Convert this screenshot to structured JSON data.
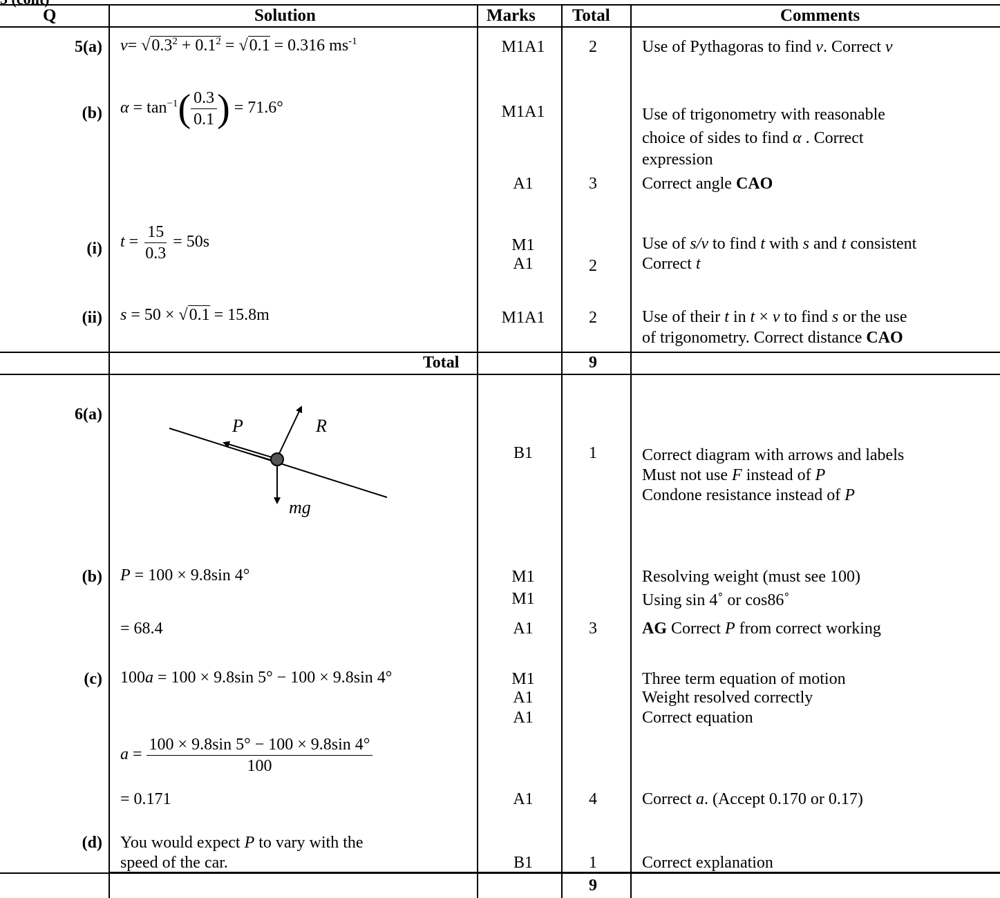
{
  "partial_header": "(cont)",
  "headers": {
    "q": "Q",
    "solution": "Solution",
    "marks": "Marks",
    "total": "Total",
    "comments": "Comments"
  },
  "q5": {
    "a": {
      "q": "5(a)",
      "sol": {
        "v_var": "v",
        "eq1": "= ",
        "rad1a": "0.3",
        "exp1": "2",
        "plus": " + 0.1",
        "exp2": "2",
        "eq2": " = ",
        "rad2": "0.1",
        "result": " = 0.316 ms",
        "unit_exp": "-1"
      },
      "marks": "M1A1",
      "total": "2",
      "comment_parts": {
        "c1": "Use of Pythagoras to find ",
        "v1": "v",
        "c2": ". Correct ",
        "v2": "v"
      }
    },
    "b": {
      "q": "(b)",
      "sol": {
        "alpha": "α",
        "eq": " = tan",
        "inv": "−1",
        "num": "0.3",
        "den": "0.1",
        "result": " = 71.6°"
      },
      "marks1": "M1A1",
      "comment1_line1": "Use of trigonometry with reasonable",
      "comment1_line2_a": "choice of sides to find ",
      "comment1_line2_alpha": "α",
      "comment1_line2_b": " .  Correct",
      "comment1_line3": "expression",
      "marks2": "A1",
      "total": "3",
      "comment2_a": "Correct angle ",
      "comment2_b": "CAO"
    },
    "i": {
      "q": "(i)",
      "sol": {
        "t": "t",
        "eq": " = ",
        "num": "15",
        "den": "0.3",
        "result": " = 50s"
      },
      "marks1": "M1",
      "marks2": "A1",
      "total": "2",
      "comment1": {
        "a": "Use of ",
        "b": "s/v",
        "c": " to find ",
        "d": "t",
        "e": " with ",
        "f": "s",
        "g": " and ",
        "h": "t",
        "i": " consistent"
      },
      "comment2": {
        "a": "Correct ",
        "b": "t"
      }
    },
    "ii": {
      "q": "(ii)",
      "sol": {
        "s": "s",
        "eq": " = 50 × ",
        "rad": "0.1",
        "result": " = 15.8m"
      },
      "marks": "M1A1",
      "total": "2",
      "comment1": {
        "a": "Use of their ",
        "b": "t",
        "c": " in  ",
        "d": "t",
        "e": " × ",
        "f": "v",
        "g": "  to find ",
        "h": "s",
        "i": " or the use"
      },
      "comment2": {
        "a": "of trigonometry.  Correct distance ",
        "b": "CAO"
      }
    },
    "total_row": {
      "label": "Total",
      "value": "9"
    }
  },
  "q6": {
    "a": {
      "q": "6(a)",
      "diagram": {
        "label_p": "P",
        "label_r": "R",
        "label_mg": "mg"
      },
      "marks": "B1",
      "total": "1",
      "comment1": "Correct diagram with arrows and labels",
      "comment2": {
        "a": "Must not use ",
        "b": "F",
        "c": " instead of ",
        "d": "P"
      },
      "comment3": {
        "a": "Condone resistance instead of ",
        "b": "P"
      }
    },
    "b": {
      "q": "(b)",
      "sol1": {
        "p": "P",
        "rest": " = 100 × 9.8sin 4°"
      },
      "sol2": "= 68.4",
      "marks1": "M1",
      "marks2": "M1",
      "marks3": "A1",
      "total": "3",
      "comment1": "Resolving weight (must see 100)",
      "comment2": "Using  sin 4˚ or  cos86˚",
      "comment3": {
        "a": "AG",
        "b": "  Correct ",
        "c": "P",
        "d": " from correct working"
      }
    },
    "c": {
      "q": "(c)",
      "sol1": {
        "a": "100",
        "b": "a",
        "c": " = 100 × 9.8sin 5° − 100 × 9.8sin 4°"
      },
      "sol2": {
        "a": "a",
        "b": " = ",
        "num": "100 × 9.8sin 5° − 100 × 9.8sin 4°",
        "den": "100"
      },
      "sol3": "= 0.171",
      "marks1": "M1",
      "marks2": "A1",
      "marks3": "A1",
      "marks4": "A1",
      "total": "4",
      "comment1": "Three term equation of motion",
      "comment2": "Weight resolved correctly",
      "comment3": "Correct equation",
      "comment4": {
        "a": "Correct ",
        "b": "a",
        "c": ". (Accept 0.170 or 0.17)"
      }
    },
    "d": {
      "q": "(d)",
      "sol1": {
        "a": "You would expect ",
        "b": "P",
        "c": " to vary with the"
      },
      "sol2": "speed of the car.",
      "marks": "B1",
      "total": "1",
      "comment": "Correct explanation"
    },
    "total_row": {
      "value": "9"
    }
  }
}
